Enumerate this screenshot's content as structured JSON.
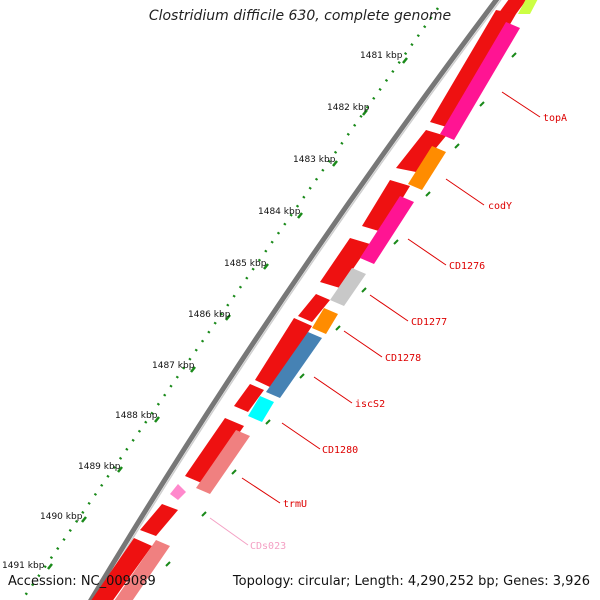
{
  "title": "Clostridium difficile 630, complete genome",
  "footer": {
    "accession": "Accession: NC_009089",
    "summary": "Topology: circular; Length: 4,290,252 bp; Genes: 3,926"
  },
  "colors": {
    "backbone": "#777777",
    "tick": "#1a8a1a",
    "cds_red": "#ee1111",
    "label_red": "#dd0000",
    "label_pink": "#f4a0c4"
  },
  "kbp_labels": [
    "1481 kbp",
    "1482 kbp",
    "1483 kbp",
    "1484 kbp",
    "1485 kbp",
    "1486 kbp",
    "1487 kbp",
    "1488 kbp",
    "1489 kbp",
    "1490 kbp",
    "1491 kbp"
  ],
  "gene_labels": [
    {
      "text": "topA",
      "color": "#dd0000"
    },
    {
      "text": "codY",
      "color": "#dd0000"
    },
    {
      "text": "CD1276",
      "color": "#dd0000"
    },
    {
      "text": "CD1277",
      "color": "#dd0000"
    },
    {
      "text": "CD1278",
      "color": "#dd0000"
    },
    {
      "text": "iscS2",
      "color": "#dd0000"
    },
    {
      "text": "CD1280",
      "color": "#dd0000"
    },
    {
      "text": "trmU",
      "color": "#dd0000"
    },
    {
      "text": "CDs023",
      "color": "#f4a0c4"
    }
  ],
  "ring2_colors": [
    "#ff1493",
    "#ff8c00",
    "#ff1493",
    "#c8c8c8",
    "#ff8c00",
    "#4682b4",
    "#00ffff",
    "#f08080",
    "#f08080"
  ]
}
